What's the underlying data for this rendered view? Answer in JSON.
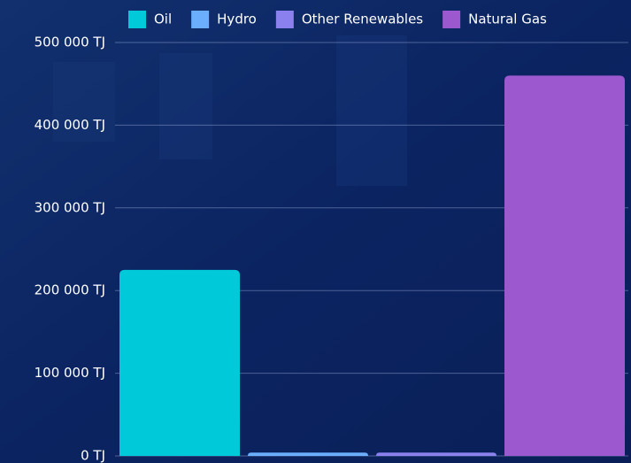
{
  "chart_data": {
    "type": "bar",
    "series": [
      {
        "name": "Oil",
        "color": "#00c9da",
        "values": [
          225000
        ]
      },
      {
        "name": "Hydro",
        "color": "#6aaefc",
        "values": [
          4000
        ]
      },
      {
        "name": "Other Renewables",
        "color": "#8a80ee",
        "values": [
          4000
        ]
      },
      {
        "name": "Natural Gas",
        "color": "#9b58cf",
        "values": [
          460000
        ]
      }
    ],
    "ylim": [
      0,
      500000
    ],
    "yticks": [
      {
        "value": 0,
        "label": "0 TJ"
      },
      {
        "value": 100000,
        "label": "100 000 TJ"
      },
      {
        "value": 200000,
        "label": "200 000 TJ"
      },
      {
        "value": 300000,
        "label": "300 000 TJ"
      },
      {
        "value": 400000,
        "label": "400 000 TJ"
      },
      {
        "value": 500000,
        "label": "500 000 TJ"
      }
    ],
    "grid": true
  }
}
